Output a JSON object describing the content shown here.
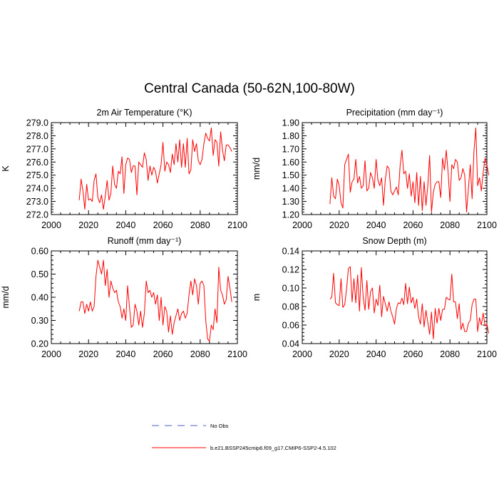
{
  "page": {
    "title": "Central Canada (50-62N,100-80W)"
  },
  "legend": {
    "entries": [
      {
        "label": "No Obs",
        "color": "#4a5cd6",
        "style": "dashed"
      },
      {
        "label": "b.e21.BSSP245cmip6.f09_g17.CMIP6-SSP2-4.5.102",
        "color": "#ff0000",
        "style": "solid"
      }
    ]
  },
  "chart_data": [
    {
      "type": "line",
      "title": "2m Air Temperature (°K)",
      "ylabel": "K",
      "xlim": [
        2000,
        2100
      ],
      "ylim": [
        272.0,
        279.0
      ],
      "xticks": [
        "2000",
        "2020",
        "2040",
        "2060",
        "2080",
        "2100"
      ],
      "yticks": [
        "272.0",
        "273.0",
        "274.0",
        "275.0",
        "276.0",
        "277.0",
        "278.0",
        "279.0"
      ],
      "series": [
        {
          "color": "#ff0000",
          "x_start": 2015,
          "values": [
            273.1,
            274.7,
            273.8,
            272.4,
            274.3,
            273.1,
            273.2,
            273.0,
            274.6,
            275.1,
            273.3,
            272.9,
            273.5,
            272.4,
            273.4,
            274.6,
            273.1,
            273.6,
            275.7,
            274.3,
            274.0,
            275.3,
            275.1,
            276.4,
            273.6,
            275.8,
            276.3,
            276.2,
            275.2,
            275.7,
            275.7,
            273.5,
            276.0,
            275.8,
            275.6,
            276.7,
            276.2,
            274.6,
            275.7,
            275.0,
            275.6,
            275.3,
            274.4,
            275.1,
            275.8,
            277.5,
            275.3,
            276.0,
            275.8,
            275.2,
            276.6,
            275.8,
            277.4,
            276.0,
            277.7,
            275.6,
            277.4,
            275.6,
            277.8,
            275.1,
            275.4,
            277.7,
            276.8,
            277.4,
            276.1,
            275.8,
            276.2,
            277.4,
            278.2,
            277.8,
            277.6,
            278.6,
            276.5,
            277.7,
            277.5,
            275.7,
            278.3,
            276.9,
            276.1,
            277.3,
            277.3,
            277.1,
            276.8
          ]
        }
      ]
    },
    {
      "type": "line",
      "title": "Precipitation (mm day⁻¹)",
      "ylabel": "mm/d",
      "xlim": [
        2000,
        2100
      ],
      "ylim": [
        1.2,
        1.9
      ],
      "xticks": [
        "2000",
        "2020",
        "2040",
        "2060",
        "2080",
        "2100"
      ],
      "yticks": [
        "1.20",
        "1.30",
        "1.40",
        "1.50",
        "1.60",
        "1.70",
        "1.80",
        "1.90"
      ],
      "series": [
        {
          "color": "#ff0000",
          "x_start": 2015,
          "values": [
            1.28,
            1.48,
            1.34,
            1.32,
            1.47,
            1.42,
            1.29,
            1.25,
            1.58,
            1.62,
            1.66,
            1.37,
            1.45,
            1.47,
            1.62,
            1.44,
            1.49,
            1.4,
            1.42,
            1.61,
            1.38,
            1.4,
            1.52,
            1.48,
            1.4,
            1.62,
            1.46,
            1.42,
            1.48,
            1.27,
            1.47,
            1.57,
            1.55,
            1.38,
            1.35,
            1.38,
            1.41,
            1.35,
            1.57,
            1.69,
            1.51,
            1.53,
            1.4,
            1.51,
            1.34,
            1.45,
            1.29,
            1.52,
            1.27,
            1.49,
            1.23,
            1.45,
            1.27,
            1.42,
            1.65,
            1.22,
            1.37,
            1.43,
            1.45,
            1.45,
            1.33,
            1.63,
            1.54,
            1.69,
            1.52,
            1.3,
            1.58,
            1.55,
            1.62,
            1.6,
            1.46,
            1.48,
            1.55,
            1.5,
            1.22,
            1.4,
            1.58,
            1.32,
            1.68,
            1.86,
            1.42,
            1.48,
            1.38,
            1.52,
            1.63,
            1.58,
            1.5
          ]
        }
      ]
    },
    {
      "type": "line",
      "title": "Runoff (mm day⁻¹)",
      "ylabel": "mm/d",
      "xlim": [
        2000,
        2100
      ],
      "ylim": [
        0.2,
        0.6
      ],
      "xticks": [
        "2000",
        "2020",
        "2040",
        "2060",
        "2080",
        "2100"
      ],
      "yticks": [
        "0.20",
        "0.30",
        "0.40",
        "0.50",
        "0.60"
      ],
      "series": [
        {
          "color": "#ff0000",
          "x_start": 2015,
          "values": [
            0.34,
            0.38,
            0.38,
            0.33,
            0.37,
            0.34,
            0.38,
            0.34,
            0.36,
            0.49,
            0.56,
            0.53,
            0.5,
            0.56,
            0.45,
            0.52,
            0.4,
            0.47,
            0.44,
            0.42,
            0.43,
            0.38,
            0.36,
            0.31,
            0.35,
            0.3,
            0.45,
            0.36,
            0.27,
            0.28,
            0.37,
            0.34,
            0.28,
            0.34,
            0.27,
            0.33,
            0.47,
            0.42,
            0.43,
            0.4,
            0.42,
            0.37,
            0.41,
            0.3,
            0.4,
            0.28,
            0.36,
            0.34,
            0.25,
            0.32,
            0.24,
            0.29,
            0.32,
            0.35,
            0.3,
            0.33,
            0.34,
            0.31,
            0.33,
            0.41,
            0.47,
            0.41,
            0.48,
            0.45,
            0.37,
            0.46,
            0.47,
            0.45,
            0.3,
            0.22,
            0.21,
            0.28,
            0.26,
            0.35,
            0.29,
            0.53,
            0.43,
            0.41,
            0.37,
            0.39,
            0.49,
            0.44,
            0.38
          ]
        }
      ]
    },
    {
      "type": "line",
      "title": "Snow Depth (m)",
      "ylabel": "m",
      "xlim": [
        2000,
        2100
      ],
      "ylim": [
        0.04,
        0.14
      ],
      "xticks": [
        "2000",
        "2020",
        "2040",
        "2060",
        "2080",
        "2100"
      ],
      "yticks": [
        "0.04",
        "0.06",
        "0.08",
        "0.10",
        "0.12",
        "0.14"
      ],
      "series": [
        {
          "color": "#ff0000",
          "x_start": 2015,
          "values": [
            0.088,
            0.09,
            0.116,
            0.084,
            0.082,
            0.081,
            0.11,
            0.079,
            0.082,
            0.099,
            0.121,
            0.123,
            0.085,
            0.11,
            0.084,
            0.114,
            0.075,
            0.122,
            0.09,
            0.076,
            0.108,
            0.077,
            0.096,
            0.1,
            0.073,
            0.088,
            0.081,
            0.103,
            0.069,
            0.091,
            0.083,
            0.075,
            0.085,
            0.075,
            0.069,
            0.061,
            0.078,
            0.084,
            0.083,
            0.089,
            0.082,
            0.105,
            0.083,
            0.101,
            0.084,
            0.09,
            0.078,
            0.088,
            0.069,
            0.061,
            0.083,
            0.058,
            0.076,
            0.063,
            0.05,
            0.074,
            0.045,
            0.078,
            0.062,
            0.078,
            0.065,
            0.077,
            0.077,
            0.09,
            0.088,
            0.087,
            0.115,
            0.085,
            0.085,
            0.067,
            0.083,
            0.055,
            0.062,
            0.053,
            0.053,
            0.062,
            0.065,
            0.082,
            0.088,
            0.088,
            0.053,
            0.068,
            0.06,
            0.073,
            0.059,
            0.061,
            0.051
          ]
        }
      ]
    }
  ]
}
